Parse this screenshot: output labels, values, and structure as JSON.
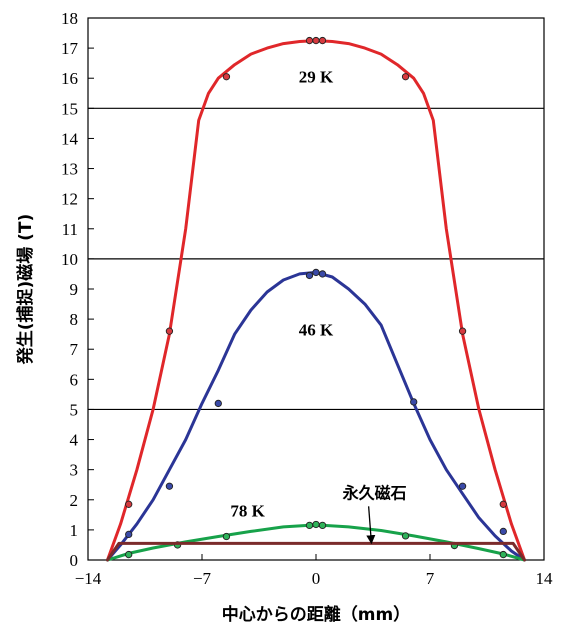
{
  "chart_data": {
    "type": "line",
    "title": "",
    "xlabel": "中心からの距離（mm）",
    "ylabel": "発生(捕捉)磁場 (T)",
    "xlim": [
      -14,
      14
    ],
    "ylim": [
      0,
      18
    ],
    "xticks": [
      {
        "value": -14,
        "label": "−14"
      },
      {
        "value": -7,
        "label": "−7"
      },
      {
        "value": 0,
        "label": "0"
      },
      {
        "value": 7,
        "label": "7"
      },
      {
        "value": 14,
        "label": "14"
      }
    ],
    "yticks": [
      0,
      1,
      2,
      3,
      4,
      5,
      6,
      7,
      8,
      9,
      10,
      11,
      12,
      13,
      14,
      15,
      16,
      17,
      18
    ],
    "reference_lines": [
      5,
      10,
      15
    ],
    "series": [
      {
        "label": "29 K",
        "color": "#e0272a",
        "marker_color": "#d63a3f",
        "curve": [
          [
            -12.8,
            0
          ],
          [
            -12,
            1.2
          ],
          [
            -11,
            3
          ],
          [
            -10,
            5
          ],
          [
            -9,
            7.5
          ],
          [
            -8,
            11
          ],
          [
            -7.2,
            14.6
          ],
          [
            -6.6,
            15.5
          ],
          [
            -6,
            16.0
          ],
          [
            -5,
            16.45
          ],
          [
            -4,
            16.8
          ],
          [
            -3,
            17.0
          ],
          [
            -2,
            17.15
          ],
          [
            -1,
            17.22
          ],
          [
            0,
            17.25
          ],
          [
            1,
            17.22
          ],
          [
            2,
            17.15
          ],
          [
            3,
            17.0
          ],
          [
            4,
            16.8
          ],
          [
            5,
            16.45
          ],
          [
            6,
            16.0
          ],
          [
            6.6,
            15.5
          ],
          [
            7.2,
            14.6
          ],
          [
            8,
            11
          ],
          [
            9,
            7.5
          ],
          [
            10,
            5
          ],
          [
            11,
            3
          ],
          [
            12,
            1.2
          ],
          [
            12.8,
            0
          ]
        ],
        "markers": [
          [
            -11.5,
            1.85
          ],
          [
            -9,
            7.6
          ],
          [
            -5.5,
            16.05
          ],
          [
            -0.4,
            17.25
          ],
          [
            0,
            17.25
          ],
          [
            0.4,
            17.25
          ],
          [
            5.5,
            16.05
          ],
          [
            9,
            7.6
          ],
          [
            11.5,
            1.85
          ]
        ]
      },
      {
        "label": "46 K",
        "color": "#2b3596",
        "marker_color": "#3a4aa8",
        "curve": [
          [
            -12.8,
            0
          ],
          [
            -12,
            0.5
          ],
          [
            -11,
            1.2
          ],
          [
            -10,
            2.0
          ],
          [
            -9,
            3.0
          ],
          [
            -8,
            4.0
          ],
          [
            -7,
            5.2
          ],
          [
            -6,
            6.3
          ],
          [
            -5,
            7.5
          ],
          [
            -4,
            8.3
          ],
          [
            -3,
            8.9
          ],
          [
            -2,
            9.3
          ],
          [
            -1,
            9.5
          ],
          [
            0,
            9.55
          ],
          [
            1,
            9.4
          ],
          [
            2,
            9.0
          ],
          [
            3,
            8.5
          ],
          [
            4,
            7.8
          ],
          [
            5,
            6.5
          ],
          [
            6,
            5.2
          ],
          [
            7,
            4.0
          ],
          [
            8,
            3.0
          ],
          [
            9,
            2.2
          ],
          [
            10,
            1.4
          ],
          [
            11,
            0.8
          ],
          [
            12,
            0.3
          ],
          [
            12.8,
            0
          ]
        ],
        "markers": [
          [
            -11.5,
            0.85
          ],
          [
            -9,
            2.45
          ],
          [
            -6,
            5.2
          ],
          [
            -0.4,
            9.45
          ],
          [
            0,
            9.55
          ],
          [
            0.4,
            9.5
          ],
          [
            6,
            5.25
          ],
          [
            9,
            2.45
          ],
          [
            11.5,
            0.95
          ]
        ]
      },
      {
        "label": "78 K",
        "color": "#17a24a",
        "marker_color": "#2fb35a",
        "curve": [
          [
            -12.8,
            0
          ],
          [
            -11.5,
            0.22
          ],
          [
            -10,
            0.4
          ],
          [
            -8,
            0.6
          ],
          [
            -6,
            0.78
          ],
          [
            -4,
            0.95
          ],
          [
            -2,
            1.1
          ],
          [
            -0.5,
            1.15
          ],
          [
            0,
            1.15
          ],
          [
            0.5,
            1.15
          ],
          [
            2,
            1.1
          ],
          [
            4,
            0.98
          ],
          [
            6,
            0.8
          ],
          [
            8,
            0.6
          ],
          [
            10,
            0.38
          ],
          [
            11.5,
            0.2
          ],
          [
            12.8,
            0
          ]
        ],
        "markers": [
          [
            -11.5,
            0.18
          ],
          [
            -8.5,
            0.5
          ],
          [
            -5.5,
            0.78
          ],
          [
            -0.4,
            1.15
          ],
          [
            0,
            1.18
          ],
          [
            0.4,
            1.15
          ],
          [
            5.5,
            0.8
          ],
          [
            8.5,
            0.48
          ],
          [
            11.5,
            0.18
          ]
        ]
      },
      {
        "label": "永久磁石",
        "color": "#7b2b2b",
        "curve": [
          [
            -12.8,
            0
          ],
          [
            -12.1,
            0.55
          ],
          [
            12.1,
            0.55
          ],
          [
            12.8,
            0
          ]
        ]
      }
    ],
    "annotations": [
      {
        "text": "29 K",
        "x": 0,
        "y": 15.85
      },
      {
        "text": "46 K",
        "x": 0,
        "y": 7.45
      },
      {
        "text": "78 K",
        "x": -4.2,
        "y": 1.45
      },
      {
        "text": "永久磁石",
        "x": 3.6,
        "y": 2.05,
        "arrow_to": [
          3.4,
          0.55
        ]
      }
    ]
  }
}
